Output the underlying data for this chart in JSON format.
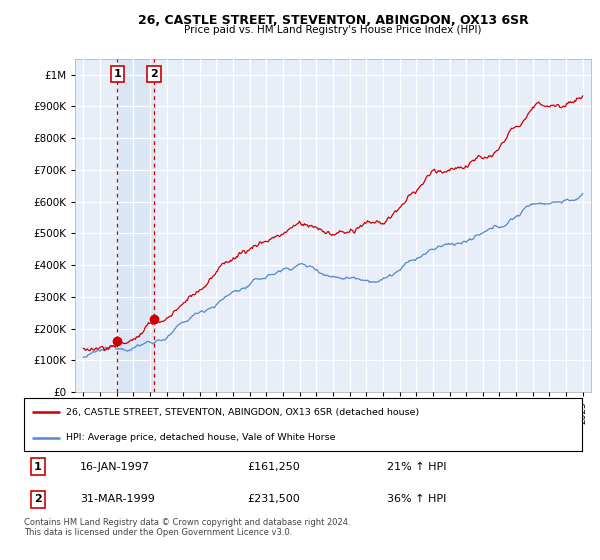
{
  "title": "26, CASTLE STREET, STEVENTON, ABINGDON, OX13 6SR",
  "subtitle": "Price paid vs. HM Land Registry's House Price Index (HPI)",
  "legend_line1": "26, CASTLE STREET, STEVENTON, ABINGDON, OX13 6SR (detached house)",
  "legend_line2": "HPI: Average price, detached house, Vale of White Horse",
  "transaction1_date": "16-JAN-1997",
  "transaction1_price": "£161,250",
  "transaction1_hpi": "21% ↑ HPI",
  "transaction2_date": "31-MAR-1999",
  "transaction2_price": "£231,500",
  "transaction2_hpi": "36% ↑ HPI",
  "footer": "Contains HM Land Registry data © Crown copyright and database right 2024.\nThis data is licensed under the Open Government Licence v3.0.",
  "hpi_color": "#5588cc",
  "price_color": "#cc0000",
  "marker_color": "#cc0000",
  "vline_color": "#cc0000",
  "background_color": "#e8eef8",
  "plot_bg": "#ffffff",
  "band_color": "#dae6f5",
  "ylim": [
    0,
    1050000
  ],
  "yticks": [
    0,
    100000,
    200000,
    300000,
    400000,
    500000,
    600000,
    700000,
    800000,
    900000,
    1000000
  ],
  "t1_x": 1997.04,
  "t1_y": 161250,
  "t2_x": 1999.25,
  "t2_y": 231500,
  "xlim": [
    1994.5,
    2025.5
  ]
}
